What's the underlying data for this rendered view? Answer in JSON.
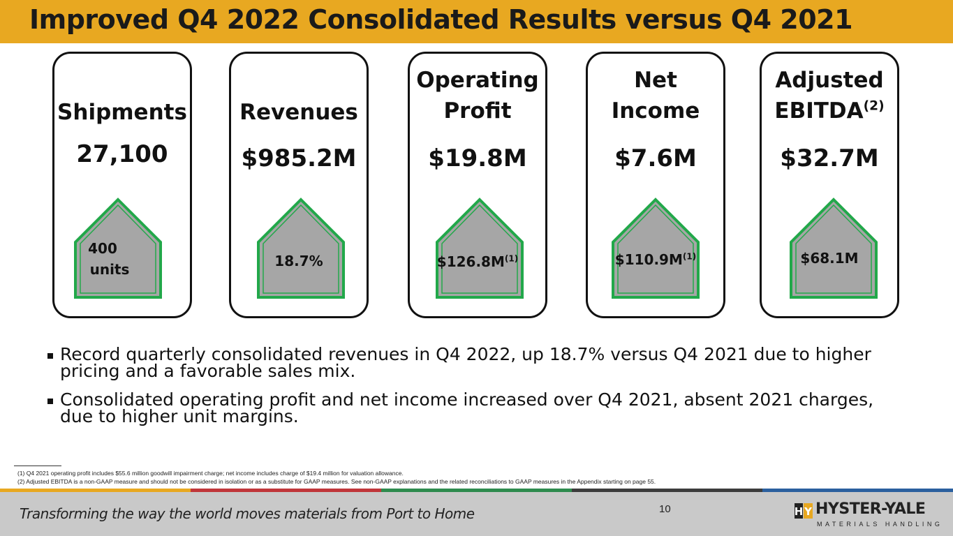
{
  "title": "Improved Q4 2022 Consolidated Results versus Q4 2021",
  "cards": [
    {
      "label_line1": "",
      "label_line2": "Shipments",
      "value": "27,100",
      "change": "400",
      "change_line2": "units",
      "change_sup": ""
    },
    {
      "label_line1": "",
      "label_line2": "Revenues",
      "value": "$985.2M",
      "change": "18.7%",
      "change_line2": "",
      "change_sup": ""
    },
    {
      "label_line1": "Operating",
      "label_line2": "Profit",
      "value": "$19.8M",
      "change": "$126.8M",
      "change_line2": "",
      "change_sup": "(1)"
    },
    {
      "label_line1": "Net",
      "label_line2": "Income",
      "value": "$7.6M",
      "change": "$110.9M",
      "change_line2": "",
      "change_sup": "(1)"
    },
    {
      "label_line1": "Adjusted",
      "label_line2": "EBITDA",
      "label_sup": "(2)",
      "value": "$32.7M",
      "change": "$68.1M",
      "change_line2": "",
      "change_sup": ""
    }
  ],
  "bullets": [
    "Record quarterly consolidated revenues in Q4 2022, up 18.7% versus Q4 2021 due to higher pricing and a favorable sales mix.",
    "Consolidated operating profit and net income increased over Q4 2021, absent 2021 charges, due to higher unit margins."
  ],
  "footnotes": [
    "(1) Q4 2021 operating profit includes $55.6 million goodwill impairment charge; net income includes charge of $19.4 million for valuation allowance.",
    "(2) Adjusted EBITDA is a non-GAAP measure and should not be considered in isolation or as a substitute for GAAP measures. See non-GAAP explanations and the related reconciliations to GAAP measures in the Appendix starting on page 55."
  ],
  "footer": {
    "tagline": "Transforming the way the world moves materials from Port to Home",
    "page_number": "10",
    "logo_name": "HYSTER-YALE",
    "logo_sub": "MATERIALS HANDLING"
  },
  "colors": {
    "title_bar": "#E8A821",
    "arrow_fill": "#A6A6A6",
    "arrow_stroke": "#22A84A",
    "stripes": [
      "#E8A821",
      "#C0363A",
      "#2E8B4E",
      "#3C3C3C",
      "#2B5F9E"
    ]
  }
}
